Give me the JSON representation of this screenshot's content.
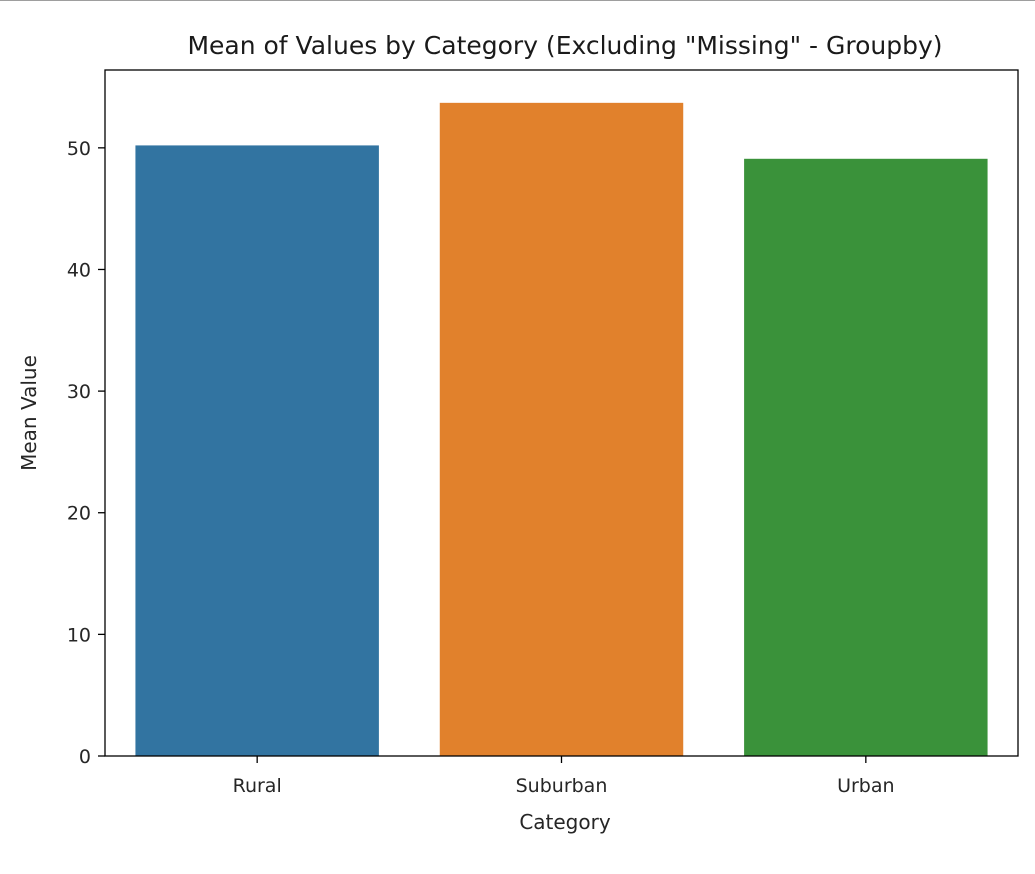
{
  "chart_data": {
    "type": "bar",
    "title": "Mean of Values by Category (Excluding \"Missing\" - Groupby)",
    "xlabel": "Category",
    "ylabel": "Mean Value",
    "categories": [
      "Rural",
      "Suburban",
      "Urban"
    ],
    "values": [
      50.2,
      53.7,
      49.1
    ],
    "colors": [
      "#3274a1",
      "#e1812c",
      "#3a923a"
    ],
    "ylim": [
      0,
      56.4
    ],
    "yticks": [
      0,
      10,
      20,
      30,
      40,
      50
    ],
    "grid": false,
    "legend": "none"
  }
}
